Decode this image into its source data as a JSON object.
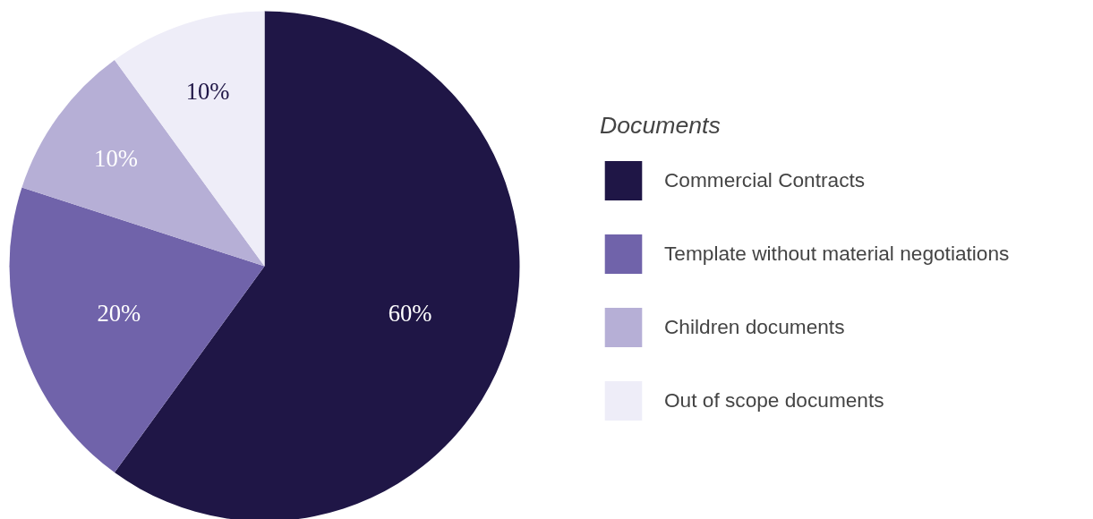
{
  "chart_data": {
    "type": "pie",
    "legend_title": "Documents",
    "categories": [
      "Commercial Contracts",
      "Template without material negotiations",
      "Children documents",
      "Out of scope documents"
    ],
    "values": [
      60,
      20,
      10,
      10
    ],
    "colors": [
      "#1f1646",
      "#7063aa",
      "#b6afd6",
      "#eeedf8"
    ],
    "value_labels": [
      "60%",
      "20%",
      "10%",
      "10%"
    ],
    "legend": "right"
  }
}
